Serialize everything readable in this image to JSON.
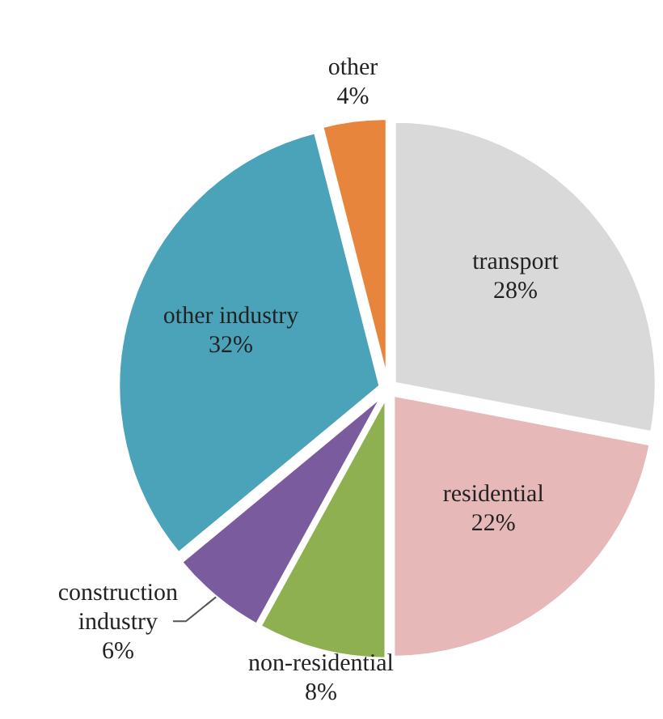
{
  "chart_data": {
    "type": "pie",
    "categories": [
      "transport",
      "residential",
      "non-residential",
      "construction industry",
      "other industry",
      "other"
    ],
    "values": [
      28,
      22,
      8,
      6,
      32,
      4
    ],
    "value_labels": [
      "28%",
      "22%",
      "8%",
      "6%",
      "32%",
      "4%"
    ],
    "colors": [
      "#d9d9d9",
      "#e6b9b8",
      "#8eb050",
      "#7a5c9e",
      "#4aa3b8",
      "#e8853d"
    ]
  }
}
